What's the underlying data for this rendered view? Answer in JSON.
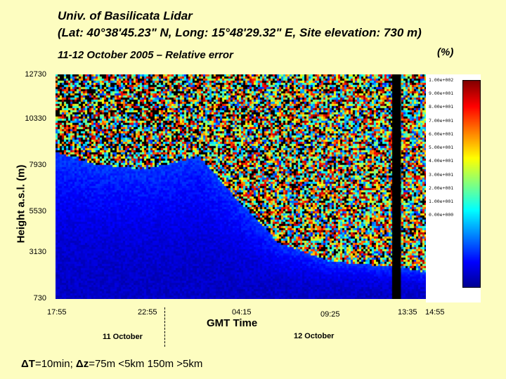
{
  "header": {
    "title_line1": "Univ. of Basilicata Lidar",
    "title_line2": "(Lat: 40°38'45.23\" N, Long: 15°48'29.32\" E, Site elevation: 730 m)",
    "subtitle": "11-12 October 2005 – Relative error",
    "unit": "(%)"
  },
  "footer": {
    "delta_t_symbol": "ΔT",
    "delta_t_text": "=10min;",
    "delta_z_symbol": "Δz",
    "delta_z_text": "=75m <5km 150m >5km"
  },
  "colors": {
    "background": "#fdfdc0",
    "plot_background": "#ffffff",
    "colormap": [
      "#00008f",
      "#0000ff",
      "#0080ff",
      "#00ffff",
      "#80ff80",
      "#ffff00",
      "#ff8000",
      "#ff0000",
      "#800000"
    ]
  },
  "chart_data": {
    "type": "heatmap",
    "title": "11-12 October 2005 – Relative error",
    "xlabel": "GMT Time",
    "ylabel": "Height a.s.l. (m)",
    "colorbar_label": "(%)",
    "y_ticks": [
      "12730",
      "10330",
      "7930",
      "5530",
      "3130",
      "730"
    ],
    "ylim": [
      730,
      12730
    ],
    "x_ticks": [
      "17:55",
      "22:55",
      "04:15",
      "09:25",
      "13:35",
      "14:55"
    ],
    "day_labels": [
      "11 October",
      "12 October"
    ],
    "colorbar": {
      "range": [
        0,
        100
      ],
      "tick_labels": [
        "1.00e+002",
        "9.00e+001",
        "8.00e+001",
        "7.00e+001",
        "6.00e+001",
        "5.00e+001",
        "4.00e+001",
        "3.00e+001",
        "2.00e+001",
        "1.00e+001",
        "0.00e+000"
      ]
    },
    "data_gap": {
      "start": "about 13:00",
      "end": "about 13:30"
    },
    "low_error_region_top_m": [
      {
        "time": "17:55",
        "height": 8600
      },
      {
        "time": "20:00",
        "height": 8000
      },
      {
        "time": "22:55",
        "height": 7700
      },
      {
        "time": "02:00",
        "height": 8400
      },
      {
        "time": "04:15",
        "height": 6000
      },
      {
        "time": "06:30",
        "height": 3800
      },
      {
        "time": "09:25",
        "height": 2800
      },
      {
        "time": "13:00",
        "height": 2500
      },
      {
        "time": "14:55",
        "height": 2200
      }
    ]
  }
}
